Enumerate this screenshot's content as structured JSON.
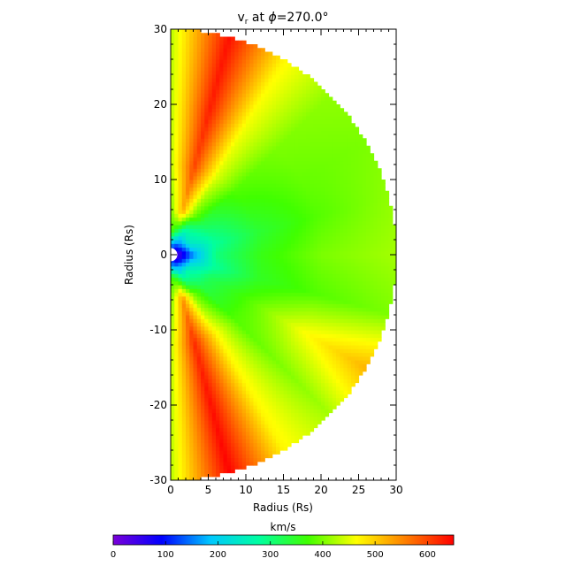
{
  "chart_data": {
    "type": "heatmap",
    "title_parts": {
      "var": "v",
      "sub": "r",
      "mid": " at ",
      "sym": "ϕ",
      "tail": "=270.0°"
    },
    "xlabel": "Radius (Rs)",
    "ylabel": "Radius (Rs)",
    "xlim": [
      0,
      30
    ],
    "ylim": [
      -30,
      30
    ],
    "x_ticks": [
      0,
      5,
      10,
      15,
      20,
      25,
      30
    ],
    "y_ticks": [
      -30,
      -20,
      -10,
      0,
      10,
      20,
      30
    ],
    "domain": {
      "shape": "half-disk",
      "outer_radius": 30,
      "inner_radius": 0.8
    },
    "colorbar": {
      "label": "km/s",
      "range": [
        0,
        650
      ],
      "ticks": [
        0,
        100,
        200,
        300,
        400,
        500,
        600
      ],
      "colormap": [
        "#7a00d8",
        "#0000ff",
        "#00c8ff",
        "#00ffa0",
        "#40ff00",
        "#ffff00",
        "#ff8000",
        "#ff0000"
      ]
    },
    "speed_field_kms": {
      "description": "radial speed by polar angle and radius",
      "angles_deg": [
        90,
        75,
        60,
        45,
        30,
        15,
        0,
        -15,
        -30,
        -45,
        -60,
        -75,
        -90
      ],
      "radii": [
        1,
        3,
        6,
        12,
        20,
        30
      ],
      "values": [
        [
          100,
          380,
          400,
          430,
          430,
          430
        ],
        [
          120,
          300,
          520,
          600,
          630,
          640
        ],
        [
          100,
          230,
          400,
          450,
          460,
          470
        ],
        [
          80,
          250,
          330,
          380,
          400,
          410
        ],
        [
          60,
          240,
          300,
          360,
          390,
          400
        ],
        [
          40,
          200,
          280,
          340,
          380,
          410
        ],
        [
          40,
          150,
          300,
          360,
          400,
          420
        ],
        [
          50,
          200,
          280,
          350,
          380,
          400
        ],
        [
          60,
          240,
          320,
          380,
          460,
          520
        ],
        [
          80,
          270,
          330,
          380,
          400,
          420
        ],
        [
          100,
          250,
          400,
          470,
          470,
          470
        ],
        [
          120,
          330,
          540,
          620,
          640,
          650
        ],
        [
          100,
          380,
          400,
          430,
          430,
          430
        ]
      ]
    }
  }
}
